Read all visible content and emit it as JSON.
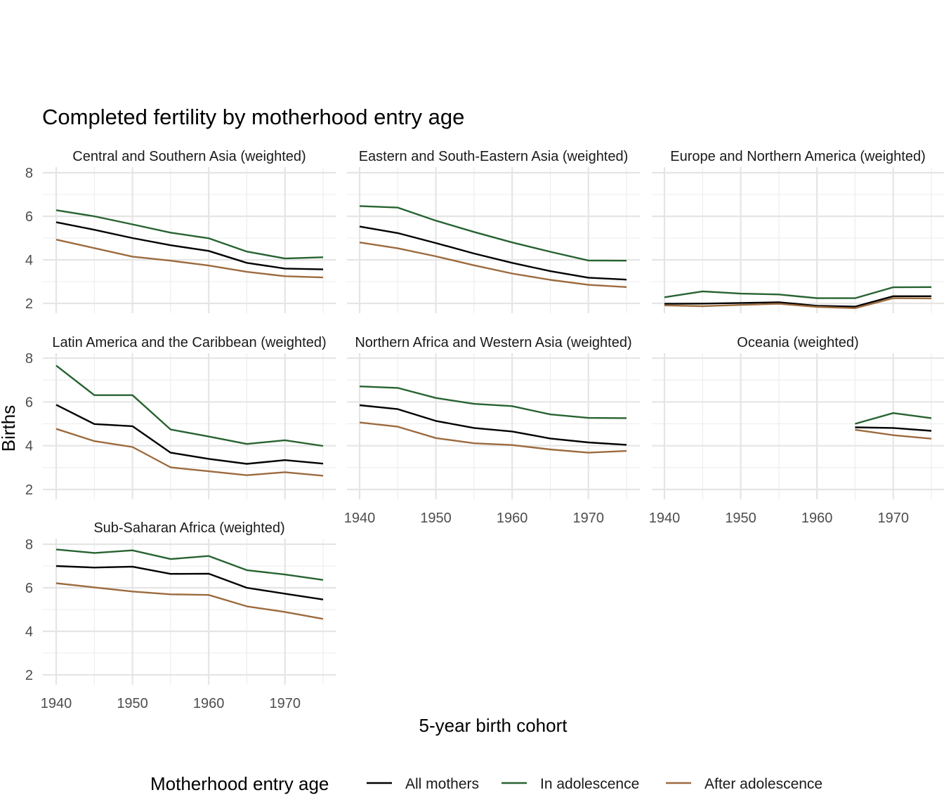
{
  "chart_data": {
    "type": "line",
    "title": "Completed fertility by motherhood entry age",
    "xlabel": "5-year birth cohort",
    "ylabel": "Births",
    "x": [
      1940,
      1945,
      1950,
      1955,
      1960,
      1965,
      1970,
      1975
    ],
    "xlim": [
      1940,
      1975
    ],
    "ylim": [
      2,
      8
    ],
    "x_ticks": [
      1940,
      1950,
      1960,
      1970
    ],
    "y_ticks": [
      2,
      4,
      6,
      8
    ],
    "grid": true,
    "legend": {
      "title": "Motherhood entry age",
      "position": "bottom",
      "entries": [
        {
          "name": "All mothers",
          "color": "#000000"
        },
        {
          "name": "In adolescence",
          "color": "#276331"
        },
        {
          "name": "After adolescence",
          "color": "#9C6B3F"
        }
      ]
    },
    "panels": [
      {
        "title": "Central and Southern Asia (weighted)",
        "series": [
          {
            "name": "All mothers",
            "values": [
              5.73,
              5.38,
              5.0,
              4.67,
              4.41,
              3.86,
              3.6,
              3.56
            ]
          },
          {
            "name": "In adolescence",
            "values": [
              6.28,
              6.0,
              5.63,
              5.25,
              4.99,
              4.38,
              4.06,
              4.12
            ]
          },
          {
            "name": "After adolescence",
            "values": [
              4.93,
              4.54,
              4.15,
              3.96,
              3.74,
              3.45,
              3.25,
              3.19
            ]
          }
        ]
      },
      {
        "title": "Eastern and South-Eastern Asia (weighted)",
        "series": [
          {
            "name": "All mothers",
            "values": [
              5.53,
              5.23,
              4.77,
              4.29,
              3.86,
              3.48,
              3.18,
              3.09
            ]
          },
          {
            "name": "In adolescence",
            "values": [
              6.47,
              6.4,
              5.8,
              5.28,
              4.8,
              4.37,
              3.97,
              3.96
            ]
          },
          {
            "name": "After adolescence",
            "values": [
              4.8,
              4.53,
              4.16,
              3.75,
              3.37,
              3.08,
              2.85,
              2.75
            ]
          }
        ]
      },
      {
        "title": "Europe and Northern America (weighted)",
        "series": [
          {
            "name": "All mothers",
            "values": [
              1.98,
              1.99,
              2.02,
              2.05,
              1.89,
              1.85,
              2.33,
              2.33
            ]
          },
          {
            "name": "In adolescence",
            "values": [
              2.28,
              2.55,
              2.45,
              2.41,
              2.24,
              2.24,
              2.74,
              2.75
            ]
          },
          {
            "name": "After adolescence",
            "values": [
              1.91,
              1.87,
              1.93,
              1.98,
              1.84,
              1.78,
              2.24,
              2.23
            ]
          }
        ]
      },
      {
        "title": "Latin America and the Caribbean (weighted)",
        "series": [
          {
            "name": "All mothers",
            "values": [
              5.87,
              4.99,
              4.89,
              3.68,
              3.4,
              3.17,
              3.34,
              3.18
            ]
          },
          {
            "name": "In adolescence",
            "values": [
              7.66,
              6.31,
              6.31,
              4.74,
              4.42,
              4.08,
              4.25,
              3.99
            ]
          },
          {
            "name": "After adolescence",
            "values": [
              4.77,
              4.21,
              3.94,
              3.01,
              2.83,
              2.65,
              2.79,
              2.63
            ]
          }
        ]
      },
      {
        "title": "Northern Africa and Western Asia (weighted)",
        "series": [
          {
            "name": "All mothers",
            "values": [
              5.85,
              5.67,
              5.13,
              4.81,
              4.65,
              4.33,
              4.15,
              4.04
            ]
          },
          {
            "name": "In adolescence",
            "values": [
              6.71,
              6.64,
              6.18,
              5.91,
              5.81,
              5.43,
              5.27,
              5.26
            ]
          },
          {
            "name": "After adolescence",
            "values": [
              5.06,
              4.87,
              4.35,
              4.11,
              4.03,
              3.83,
              3.68,
              3.76
            ]
          }
        ]
      },
      {
        "title": "Oceania (weighted)",
        "series": [
          {
            "name": "All mothers",
            "values": [
              null,
              null,
              null,
              null,
              null,
              4.84,
              4.81,
              4.68
            ]
          },
          {
            "name": "In adolescence",
            "values": [
              null,
              null,
              null,
              null,
              null,
              5.0,
              5.49,
              5.26
            ]
          },
          {
            "name": "After adolescence",
            "values": [
              null,
              null,
              null,
              null,
              null,
              4.73,
              4.48,
              4.32
            ]
          }
        ]
      },
      {
        "title": "Sub-Saharan Africa (weighted)",
        "series": [
          {
            "name": "All mothers",
            "values": [
              7.0,
              6.93,
              6.97,
              6.64,
              6.65,
              6.0,
              5.73,
              5.46
            ]
          },
          {
            "name": "In adolescence",
            "values": [
              7.76,
              7.6,
              7.72,
              7.32,
              7.46,
              6.81,
              6.61,
              6.36
            ]
          },
          {
            "name": "After adolescence",
            "values": [
              6.21,
              6.02,
              5.83,
              5.7,
              5.67,
              5.15,
              4.89,
              4.57
            ]
          }
        ]
      }
    ]
  }
}
